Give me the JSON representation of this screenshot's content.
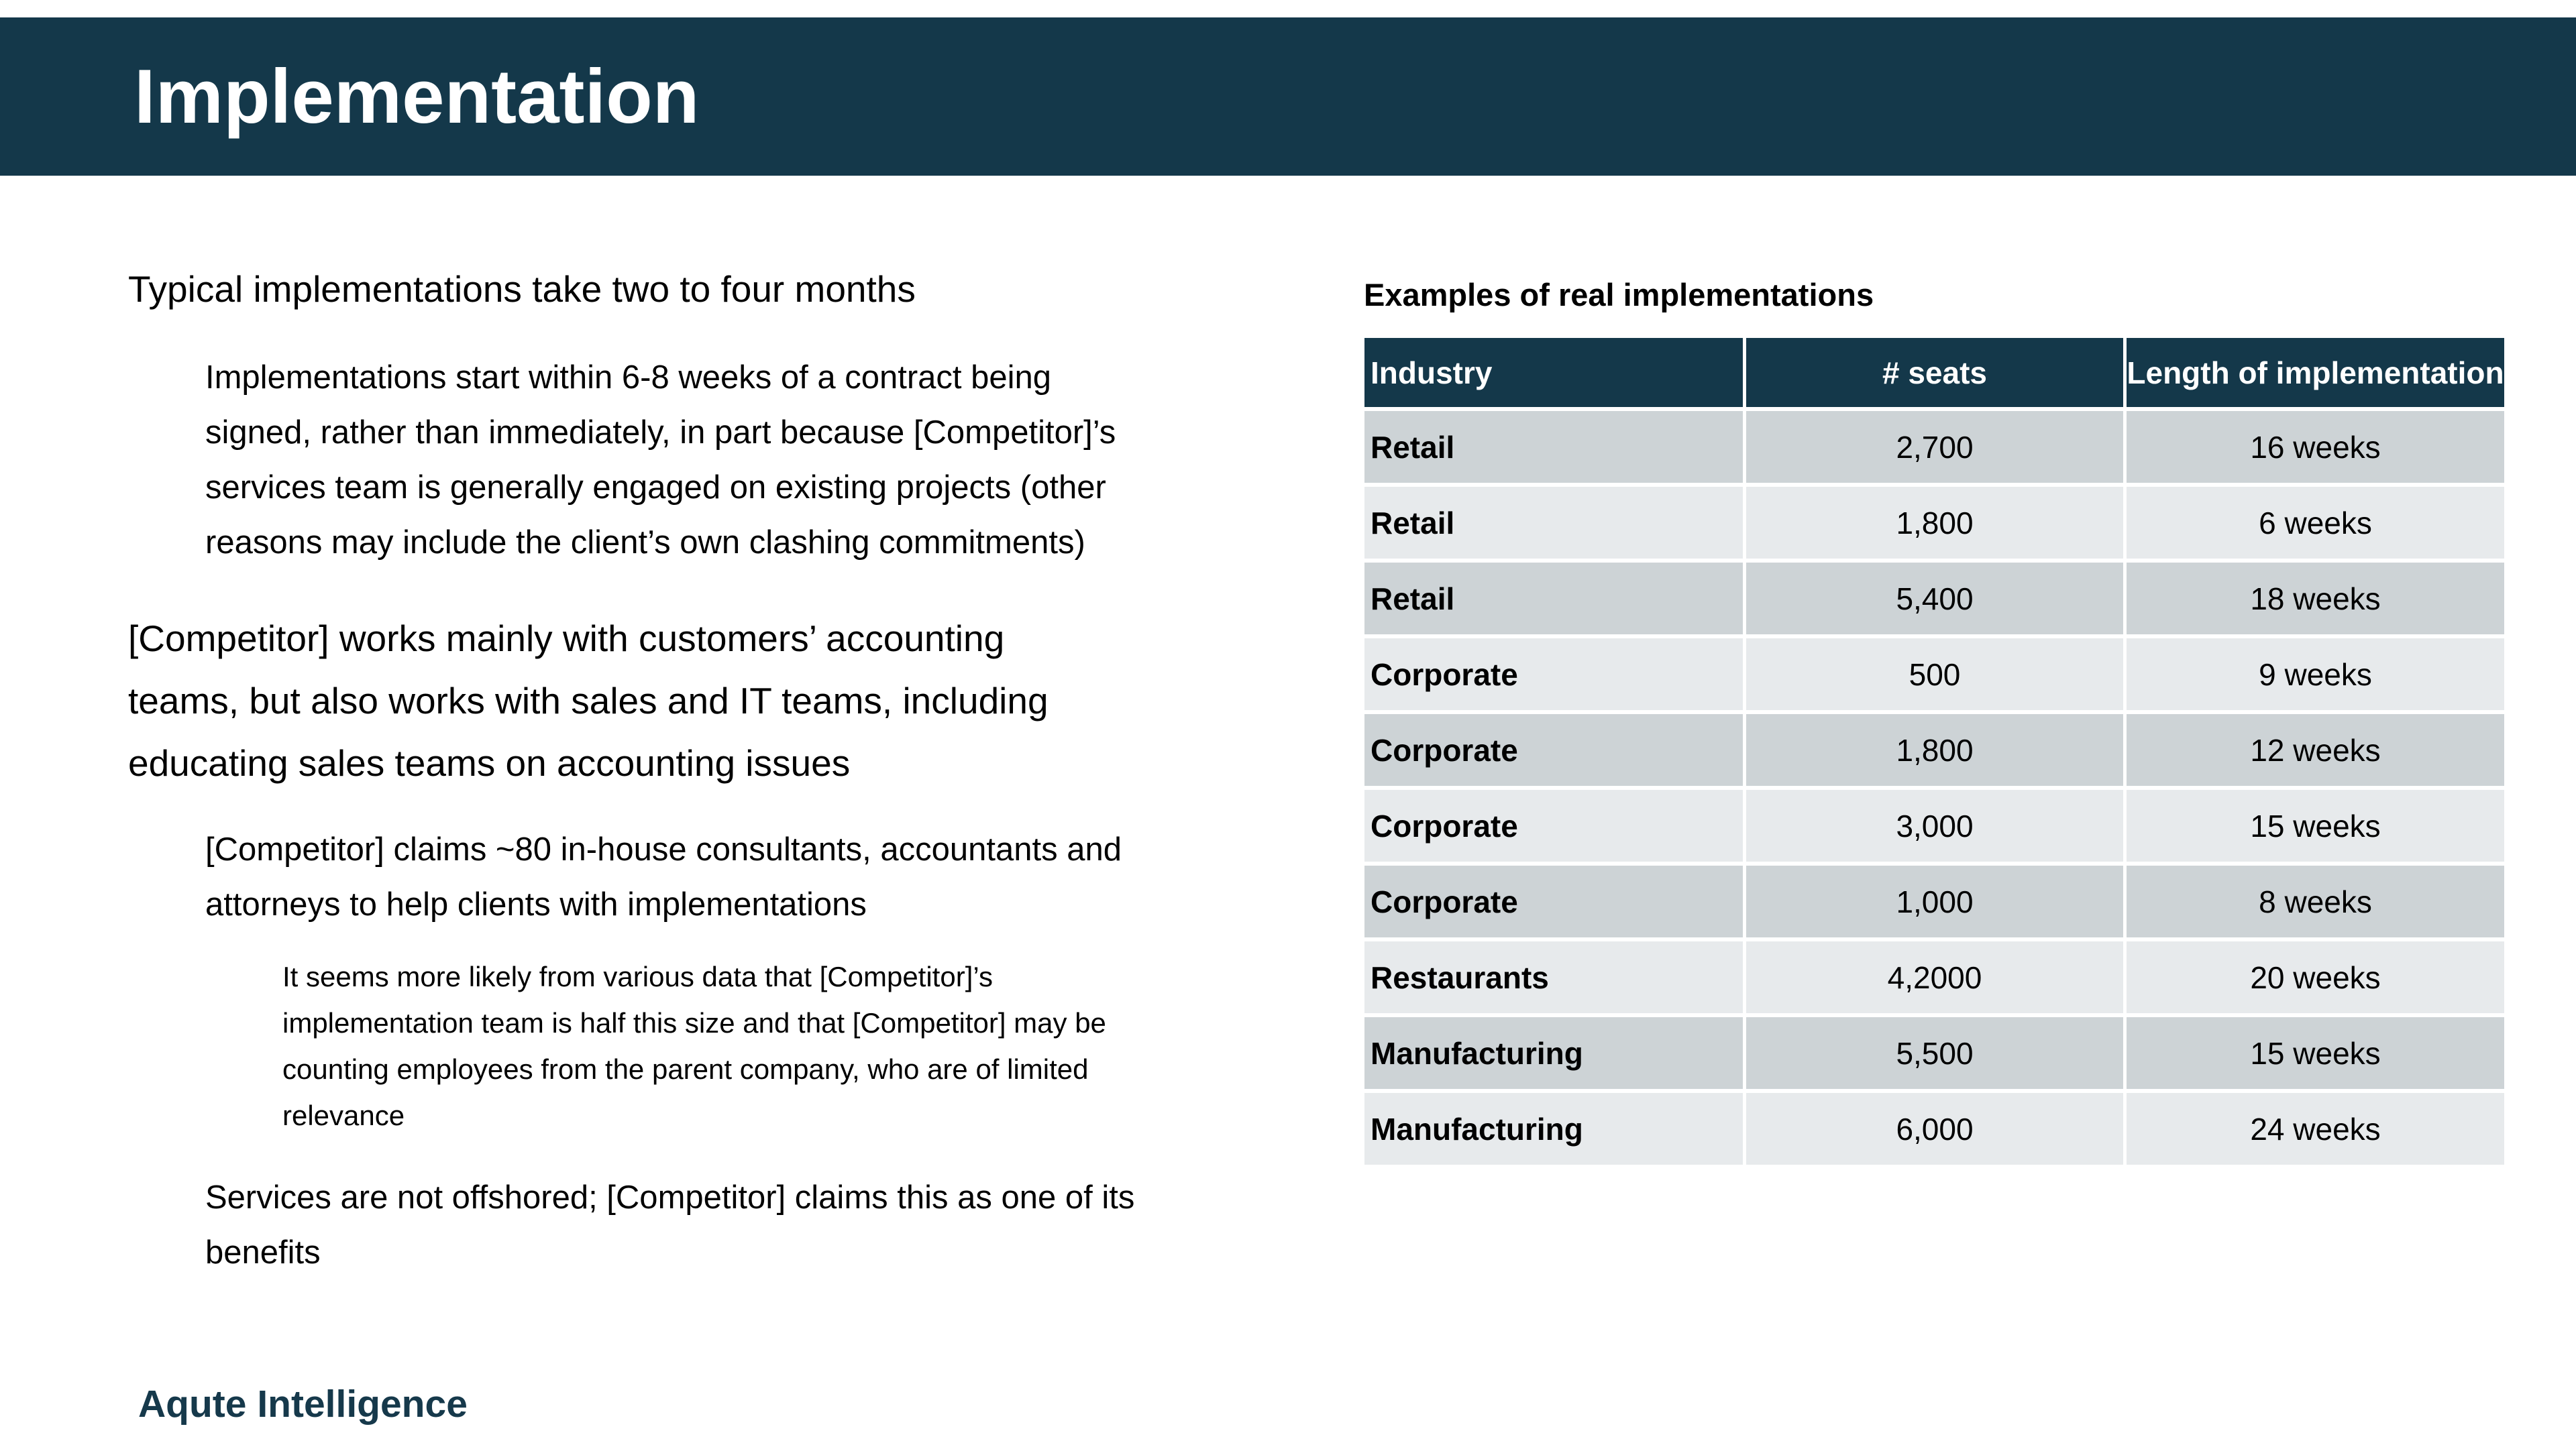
{
  "slide": {
    "title": "Implementation",
    "footer_logo": "Aqute Intelligence"
  },
  "left_column": {
    "paragraphs": [
      {
        "level": 1,
        "text": "Typical implementations take two to four months"
      },
      {
        "level": 2,
        "text": "Implementations start within 6-8 weeks of a contract being\nsigned, rather than immediately, in part because [Competitor]’s\nservices team is generally engaged on existing projects (other\nreasons may include the client’s own clashing commitments)"
      },
      {
        "level": 1,
        "text": "[Competitor] works mainly with customers’ accounting\nteams, but also works with sales and IT teams, including\neducating sales teams on accounting issues"
      },
      {
        "level": 2,
        "text": "[Competitor] claims ~80 in-house consultants, accountants and\nattorneys to help clients with implementations"
      },
      {
        "level": 3,
        "text": "It seems more likely from various data that [Competitor]’s\nimplementation team is half this size and that [Competitor] may be\ncounting employees from the parent company, who are of limited\nrelevance"
      },
      {
        "level": 2,
        "text": "Services are not offshored; [Competitor] claims this as one of its\nbenefits"
      }
    ]
  },
  "right_column": {
    "heading": "Examples of real implementations",
    "table": {
      "columns": [
        "Industry",
        "# seats",
        "Length of implementation"
      ],
      "rows": [
        {
          "industry": "Retail",
          "seats": "2,700",
          "length": "16 weeks"
        },
        {
          "industry": "Retail",
          "seats": "1,800",
          "length": "6 weeks"
        },
        {
          "industry": "Retail",
          "seats": "5,400",
          "length": "18 weeks"
        },
        {
          "industry": "Corporate",
          "seats": "500",
          "length": "9 weeks"
        },
        {
          "industry": "Corporate",
          "seats": "1,800",
          "length": "12 weeks"
        },
        {
          "industry": "Corporate",
          "seats": "3,000",
          "length": "15 weeks"
        },
        {
          "industry": "Corporate",
          "seats": "1,000",
          "length": "8 weeks"
        },
        {
          "industry": "Restaurants",
          "seats": "4,2000",
          "length": "20 weeks"
        },
        {
          "industry": "Manufacturing",
          "seats": "5,500",
          "length": "15 weeks"
        },
        {
          "industry": "Manufacturing",
          "seats": "6,000",
          "length": "24 weeks"
        }
      ]
    }
  },
  "colors": {
    "accent_teal": "#14384A",
    "row_dark": "#CDD3D6",
    "row_light": "#E7EAEC",
    "title_text": "#FFFFFF",
    "body_text": "#000000",
    "logo_text": "#16394B"
  }
}
